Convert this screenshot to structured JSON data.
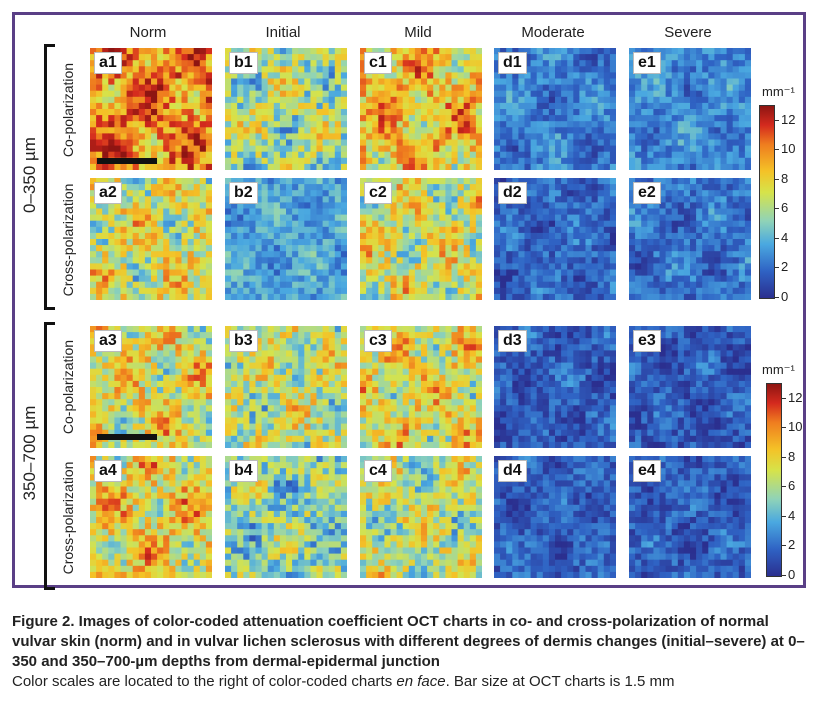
{
  "figure": {
    "columns": [
      "Norm",
      "Initial",
      "Mild",
      "Moderate",
      "Severe"
    ],
    "depth_groups": [
      {
        "label": "0–350 µm",
        "rows": [
          "Co-polarization",
          "Cross-polarization"
        ]
      },
      {
        "label": "350–700 µm",
        "rows": [
          "Co-polarization",
          "Cross-polarization"
        ]
      }
    ],
    "panel_labels": [
      [
        "a1",
        "b1",
        "c1",
        "d1",
        "e1"
      ],
      [
        "a2",
        "b2",
        "c2",
        "d2",
        "e2"
      ],
      [
        "a3",
        "b3",
        "c3",
        "d3",
        "e3"
      ],
      [
        "a4",
        "b4",
        "c4",
        "d4",
        "e4"
      ]
    ],
    "colorbar": {
      "unit": "mm⁻¹",
      "ticks": [
        "12",
        "10",
        "8",
        "6",
        "4",
        "2",
        "0"
      ],
      "range": [
        0,
        13
      ]
    },
    "colors": {
      "frame": "#5a3f86"
    },
    "attenuation_levels": [
      [
        10,
        6,
        8.5,
        2.5,
        2.8
      ],
      [
        7,
        3.5,
        7,
        1.8,
        2.2
      ],
      [
        7.5,
        6.5,
        7.5,
        1.5,
        1.4
      ],
      [
        7.8,
        5.5,
        6.5,
        1.6,
        1.6
      ]
    ]
  },
  "caption": {
    "title": "Figure 2. Images of color-coded attenuation coefficient OCT charts in co- and cross-polarization of normal vulvar skin (norm) and in vulvar lichen sclerosus with different degrees of dermis changes (initial–severe) at 0–350 and 350–700-µm depths from dermal-epidermal junction",
    "text_before_italic": "Color scales are located to the right of color-coded charts ",
    "text_italic": "en face",
    "text_after_italic": ". Bar size at OCT charts is 1.5 mm"
  }
}
